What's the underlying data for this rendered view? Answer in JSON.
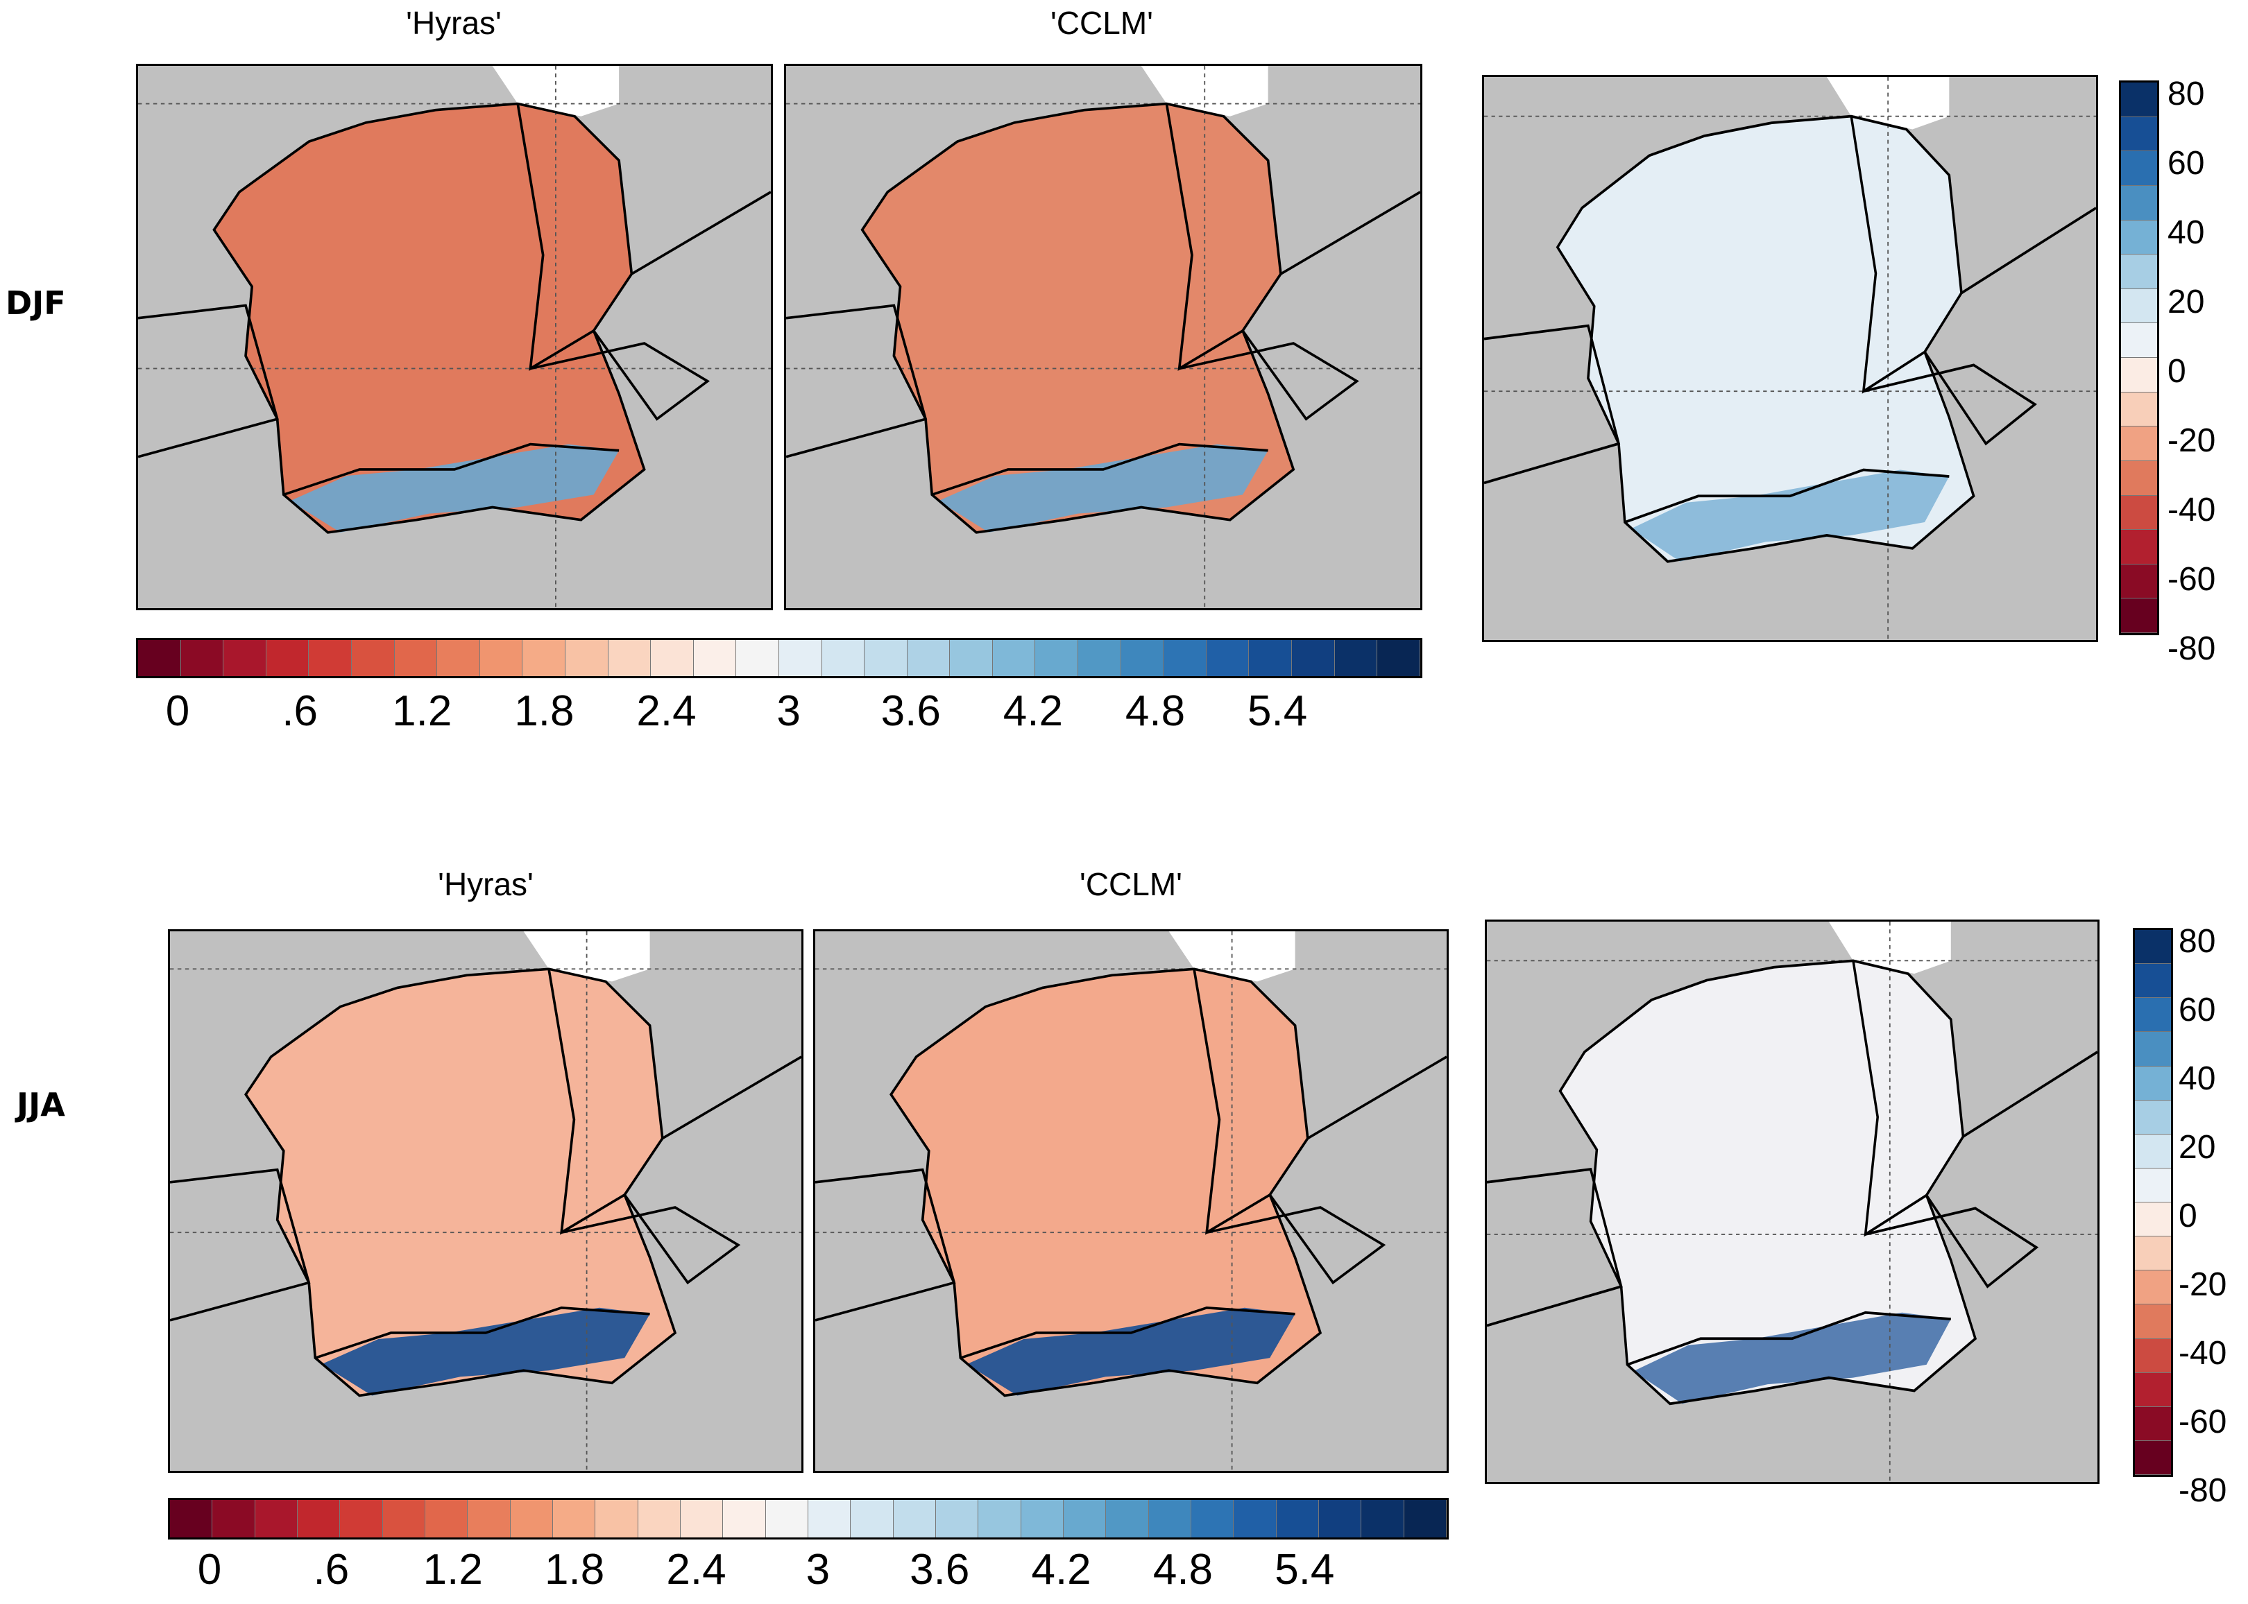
{
  "seasons": {
    "top": "DJF",
    "bottom": "JJA"
  },
  "panel_titles": {
    "hyras": "'Hyras'",
    "cclm": "'CCLM'"
  },
  "horizontal_colorbar": {
    "labels": [
      "0",
      ".6",
      "1.2",
      "1.8",
      "2.4",
      "3",
      "3.6",
      "4.2",
      "4.8",
      "5.4"
    ],
    "colors": [
      "#67001f",
      "#8b0a25",
      "#a9172c",
      "#c1272d",
      "#d03b35",
      "#d9523f",
      "#e1674b",
      "#e87e5c",
      "#f0956f",
      "#f5ab87",
      "#f8c2a5",
      "#fad5c0",
      "#fbe3d6",
      "#fbefe9",
      "#f4f4f4",
      "#e4eef5",
      "#d3e6f1",
      "#c2ddec",
      "#aed2e6",
      "#97c6df",
      "#7fb8d8",
      "#68a9cf",
      "#5198c5",
      "#3e87bd",
      "#2d74b4",
      "#2060a7",
      "#174f95",
      "#113f80",
      "#0b3168",
      "#082654"
    ]
  },
  "vertical_colorbar": {
    "labels": [
      "80",
      "60",
      "40",
      "20",
      "0",
      "-20",
      "-40",
      "-60",
      "-80"
    ],
    "colors": [
      "#0a3168",
      "#174f95",
      "#2a6fb0",
      "#4a8fc1",
      "#75b1d5",
      "#a7cee4",
      "#d3e6f1",
      "#ecf2f7",
      "#fbece4",
      "#f8cfb9",
      "#f0a283",
      "#e07a5d",
      "#cc4b41",
      "#b2202f",
      "#8a0b25",
      "#67001f"
    ]
  },
  "map_fills": {
    "djf_hyras": "#e07a5d",
    "djf_cclm": "#e3886a",
    "djf_diff": "#e4eef5",
    "jja_hyras": "#f5b49a",
    "jja_cclm": "#f3a98c",
    "jja_diff": "#f1f1f4",
    "alps_blue": "#174f95",
    "alps_light": "#6aa7d0"
  }
}
